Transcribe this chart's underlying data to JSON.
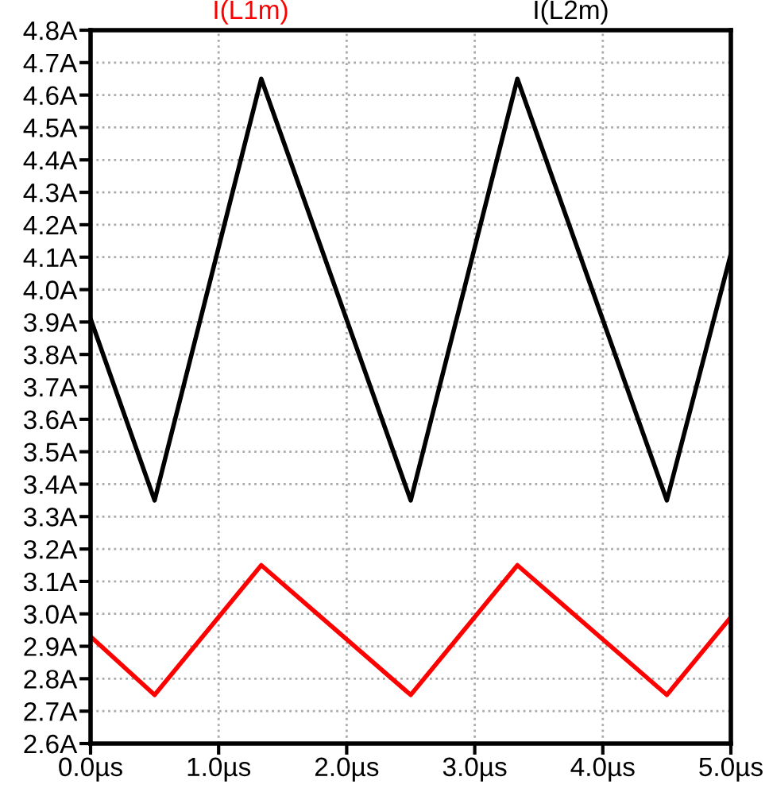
{
  "chart_data": {
    "type": "line",
    "xlim": [
      0,
      5
    ],
    "ylim": [
      2.6,
      4.8
    ],
    "xticks": [
      {
        "value": 0,
        "label": "0.0µs"
      },
      {
        "value": 1,
        "label": "1.0µs"
      },
      {
        "value": 2,
        "label": "2.0µs"
      },
      {
        "value": 3,
        "label": "3.0µs"
      },
      {
        "value": 4,
        "label": "4.0µs"
      },
      {
        "value": 5,
        "label": "5.0µs"
      }
    ],
    "yticks": [
      {
        "value": 2.6,
        "label": "2.6A"
      },
      {
        "value": 2.7,
        "label": "2.7A"
      },
      {
        "value": 2.8,
        "label": "2.8A"
      },
      {
        "value": 2.9,
        "label": "2.9A"
      },
      {
        "value": 3.0,
        "label": "3.0A"
      },
      {
        "value": 3.1,
        "label": "3.1A"
      },
      {
        "value": 3.2,
        "label": "3.2A"
      },
      {
        "value": 3.3,
        "label": "3.3A"
      },
      {
        "value": 3.4,
        "label": "3.4A"
      },
      {
        "value": 3.5,
        "label": "3.5A"
      },
      {
        "value": 3.6,
        "label": "3.6A"
      },
      {
        "value": 3.7,
        "label": "3.7A"
      },
      {
        "value": 3.8,
        "label": "3.8A"
      },
      {
        "value": 3.9,
        "label": "3.9A"
      },
      {
        "value": 4.0,
        "label": "4.0A"
      },
      {
        "value": 4.1,
        "label": "4.1A"
      },
      {
        "value": 4.2,
        "label": "4.2A"
      },
      {
        "value": 4.3,
        "label": "4.3A"
      },
      {
        "value": 4.4,
        "label": "4.4A"
      },
      {
        "value": 4.5,
        "label": "4.5A"
      },
      {
        "value": 4.6,
        "label": "4.6A"
      },
      {
        "value": 4.7,
        "label": "4.7A"
      },
      {
        "value": 4.8,
        "label": "4.8A"
      }
    ],
    "grid": true,
    "legend": "top",
    "line_style": "solid",
    "marker": "none",
    "series": [
      {
        "name": "I(L1m)",
        "color": "#ff0000",
        "x": [
          0,
          0.5,
          1.333,
          2.5,
          3.333,
          4.5,
          5
        ],
        "values": [
          2.93,
          2.75,
          3.15,
          2.75,
          3.15,
          2.75,
          2.99
        ]
      },
      {
        "name": "I(L2m)",
        "color": "#000000",
        "x": [
          0,
          0.5,
          1.333,
          2.5,
          3.333,
          4.5,
          5
        ],
        "values": [
          3.91,
          3.35,
          4.65,
          3.35,
          4.65,
          3.35,
          4.11
        ]
      }
    ]
  }
}
